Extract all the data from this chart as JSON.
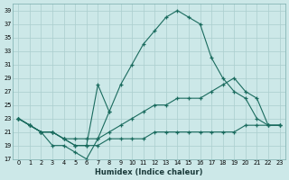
{
  "xlabel": "Humidex (Indice chaleur)",
  "background_color": "#cce8e8",
  "line_color": "#1a6b5e",
  "grid_color": "#aacece",
  "xlim": [
    -0.5,
    23.5
  ],
  "ylim": [
    17,
    40
  ],
  "yticks": [
    17,
    19,
    21,
    23,
    25,
    27,
    29,
    31,
    33,
    35,
    37,
    39
  ],
  "xticks": [
    0,
    1,
    2,
    3,
    4,
    5,
    6,
    7,
    8,
    9,
    10,
    11,
    12,
    13,
    14,
    15,
    16,
    17,
    18,
    19,
    20,
    21,
    22,
    23
  ],
  "series": [
    {
      "x": [
        0,
        1,
        2,
        3,
        4,
        5,
        6,
        7,
        8,
        9,
        10,
        11,
        12,
        13,
        14,
        15,
        16,
        17,
        18,
        19,
        20,
        21,
        22,
        23
      ],
      "y": [
        23,
        22,
        21,
        19,
        19,
        18,
        17,
        20,
        24,
        28,
        31,
        34,
        36,
        38,
        39,
        38,
        37,
        32,
        29,
        27,
        26,
        23,
        22,
        22
      ]
    },
    {
      "x": [
        0,
        1,
        2,
        3,
        4,
        5,
        6,
        7,
        8
      ],
      "y": [
        23,
        22,
        21,
        21,
        20,
        19,
        19,
        28,
        24
      ]
    },
    {
      "x": [
        0,
        1,
        2,
        3,
        4,
        5,
        6,
        7,
        8,
        9,
        10,
        11,
        12,
        13,
        14,
        15,
        16,
        17,
        18,
        19,
        20,
        21,
        22,
        23
      ],
      "y": [
        23,
        22,
        21,
        21,
        20,
        19,
        19,
        19,
        20,
        20,
        20,
        20,
        21,
        21,
        21,
        21,
        21,
        21,
        21,
        21,
        22,
        22,
        22,
        22
      ]
    },
    {
      "x": [
        0,
        1,
        2,
        3,
        4,
        5,
        6,
        7,
        8,
        9,
        10,
        11,
        12,
        13,
        14,
        15,
        16,
        17,
        18,
        19,
        20,
        21,
        22,
        23
      ],
      "y": [
        23,
        22,
        21,
        21,
        20,
        20,
        20,
        20,
        21,
        22,
        23,
        24,
        25,
        25,
        26,
        26,
        26,
        27,
        28,
        29,
        27,
        26,
        22,
        22
      ]
    }
  ]
}
